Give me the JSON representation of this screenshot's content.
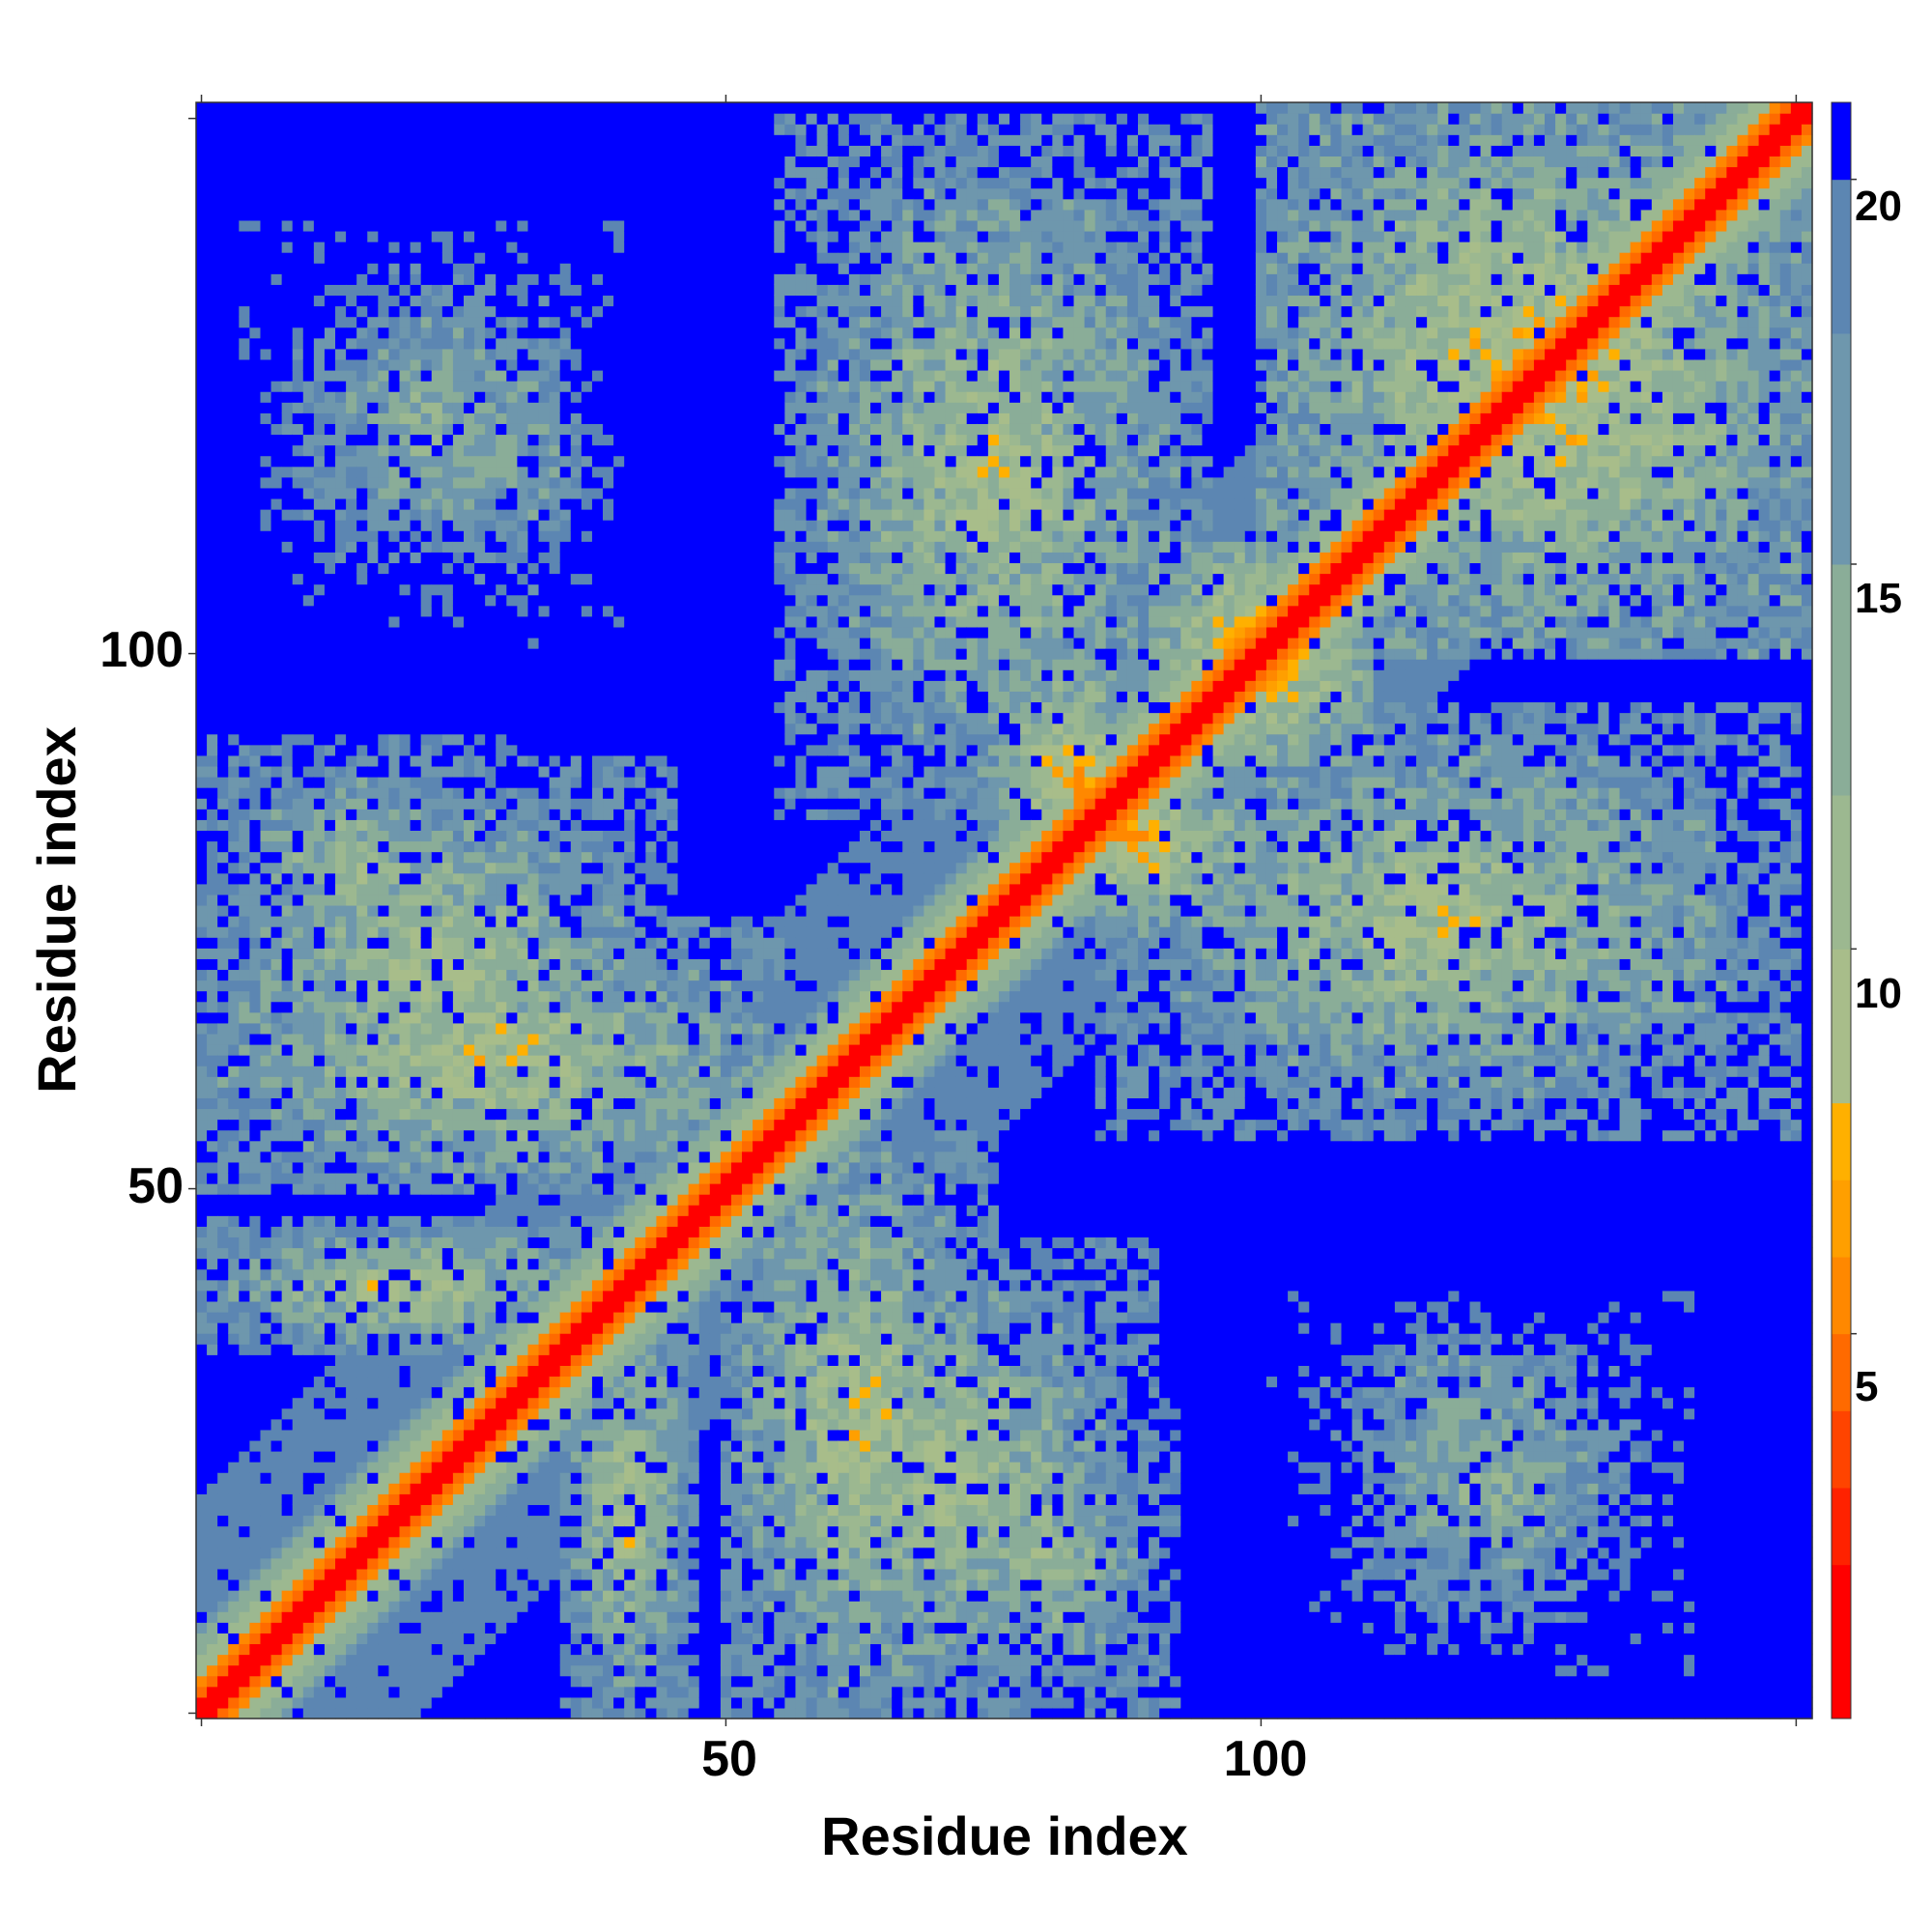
{
  "chart_data": {
    "type": "heatmap",
    "title": "",
    "xlabel": "Residue index",
    "ylabel": "Residue index",
    "n_residues": 151,
    "xlim": [
      1,
      151
    ],
    "ylim": [
      1,
      151
    ],
    "x_ticks": [
      "50",
      "100"
    ],
    "y_ticks": [
      "50",
      "100"
    ],
    "colorbar": {
      "ticks": [
        "5",
        "10",
        "15",
        "20"
      ],
      "range": [
        0,
        21
      ],
      "levels": [
        {
          "max": 2,
          "color": "#ff0000"
        },
        {
          "max": 3,
          "color": "#ff2200"
        },
        {
          "max": 4,
          "color": "#ff4400"
        },
        {
          "max": 5,
          "color": "#ff6a00"
        },
        {
          "max": 6,
          "color": "#ff8800"
        },
        {
          "max": 7,
          "color": "#ff9f00"
        },
        {
          "max": 8,
          "color": "#ffb000"
        },
        {
          "max": 10,
          "color": "#a8bd8a"
        },
        {
          "max": 12,
          "color": "#9cb890"
        },
        {
          "max": 15,
          "color": "#8aad98"
        },
        {
          "max": 18,
          "color": "#6e97ad"
        },
        {
          "max": 20,
          "color": "#5c86b2"
        },
        {
          "max": 21,
          "color": "#0000ff"
        }
      ]
    },
    "structure": {
      "description_source": "approximate reading of the contact-distance map",
      "diagonal_distance_min": 1,
      "background_distance": 21,
      "regions": [
        {
          "x": [
            1,
            55
          ],
          "y": [
            50,
            75
          ],
          "min_distance": 9
        },
        {
          "x": [
            1,
            40
          ],
          "y": [
            35,
            47
          ],
          "min_distance": 9
        },
        {
          "x": [
            5,
            40
          ],
          "y": [
            103,
            140
          ],
          "min_distance": 13
        },
        {
          "x": [
            1,
            30
          ],
          "y": [
            70,
            92
          ],
          "min_distance": 11
        },
        {
          "x": [
            55,
            90
          ],
          "y": [
            95,
            140
          ],
          "min_distance": 11
        },
        {
          "x": [
            50,
            90
          ],
          "y": [
            1,
            45
          ],
          "min_distance": 10
        },
        {
          "x": [
            85,
            150
          ],
          "y": [
            55,
            95
          ],
          "min_distance": 10
        },
        {
          "x": [
            100,
            150
          ],
          "y": [
            105,
            151
          ],
          "min_distance": 8
        },
        {
          "x": [
            100,
            140
          ],
          "y": [
            20,
            40
          ],
          "min_distance": 14
        },
        {
          "x": [
            75,
            90
          ],
          "y": [
            75,
            100
          ],
          "min_distance": 7
        },
        {
          "x": [
            90,
            110
          ],
          "y": [
            90,
            110
          ],
          "min_distance": 6
        }
      ]
    }
  }
}
